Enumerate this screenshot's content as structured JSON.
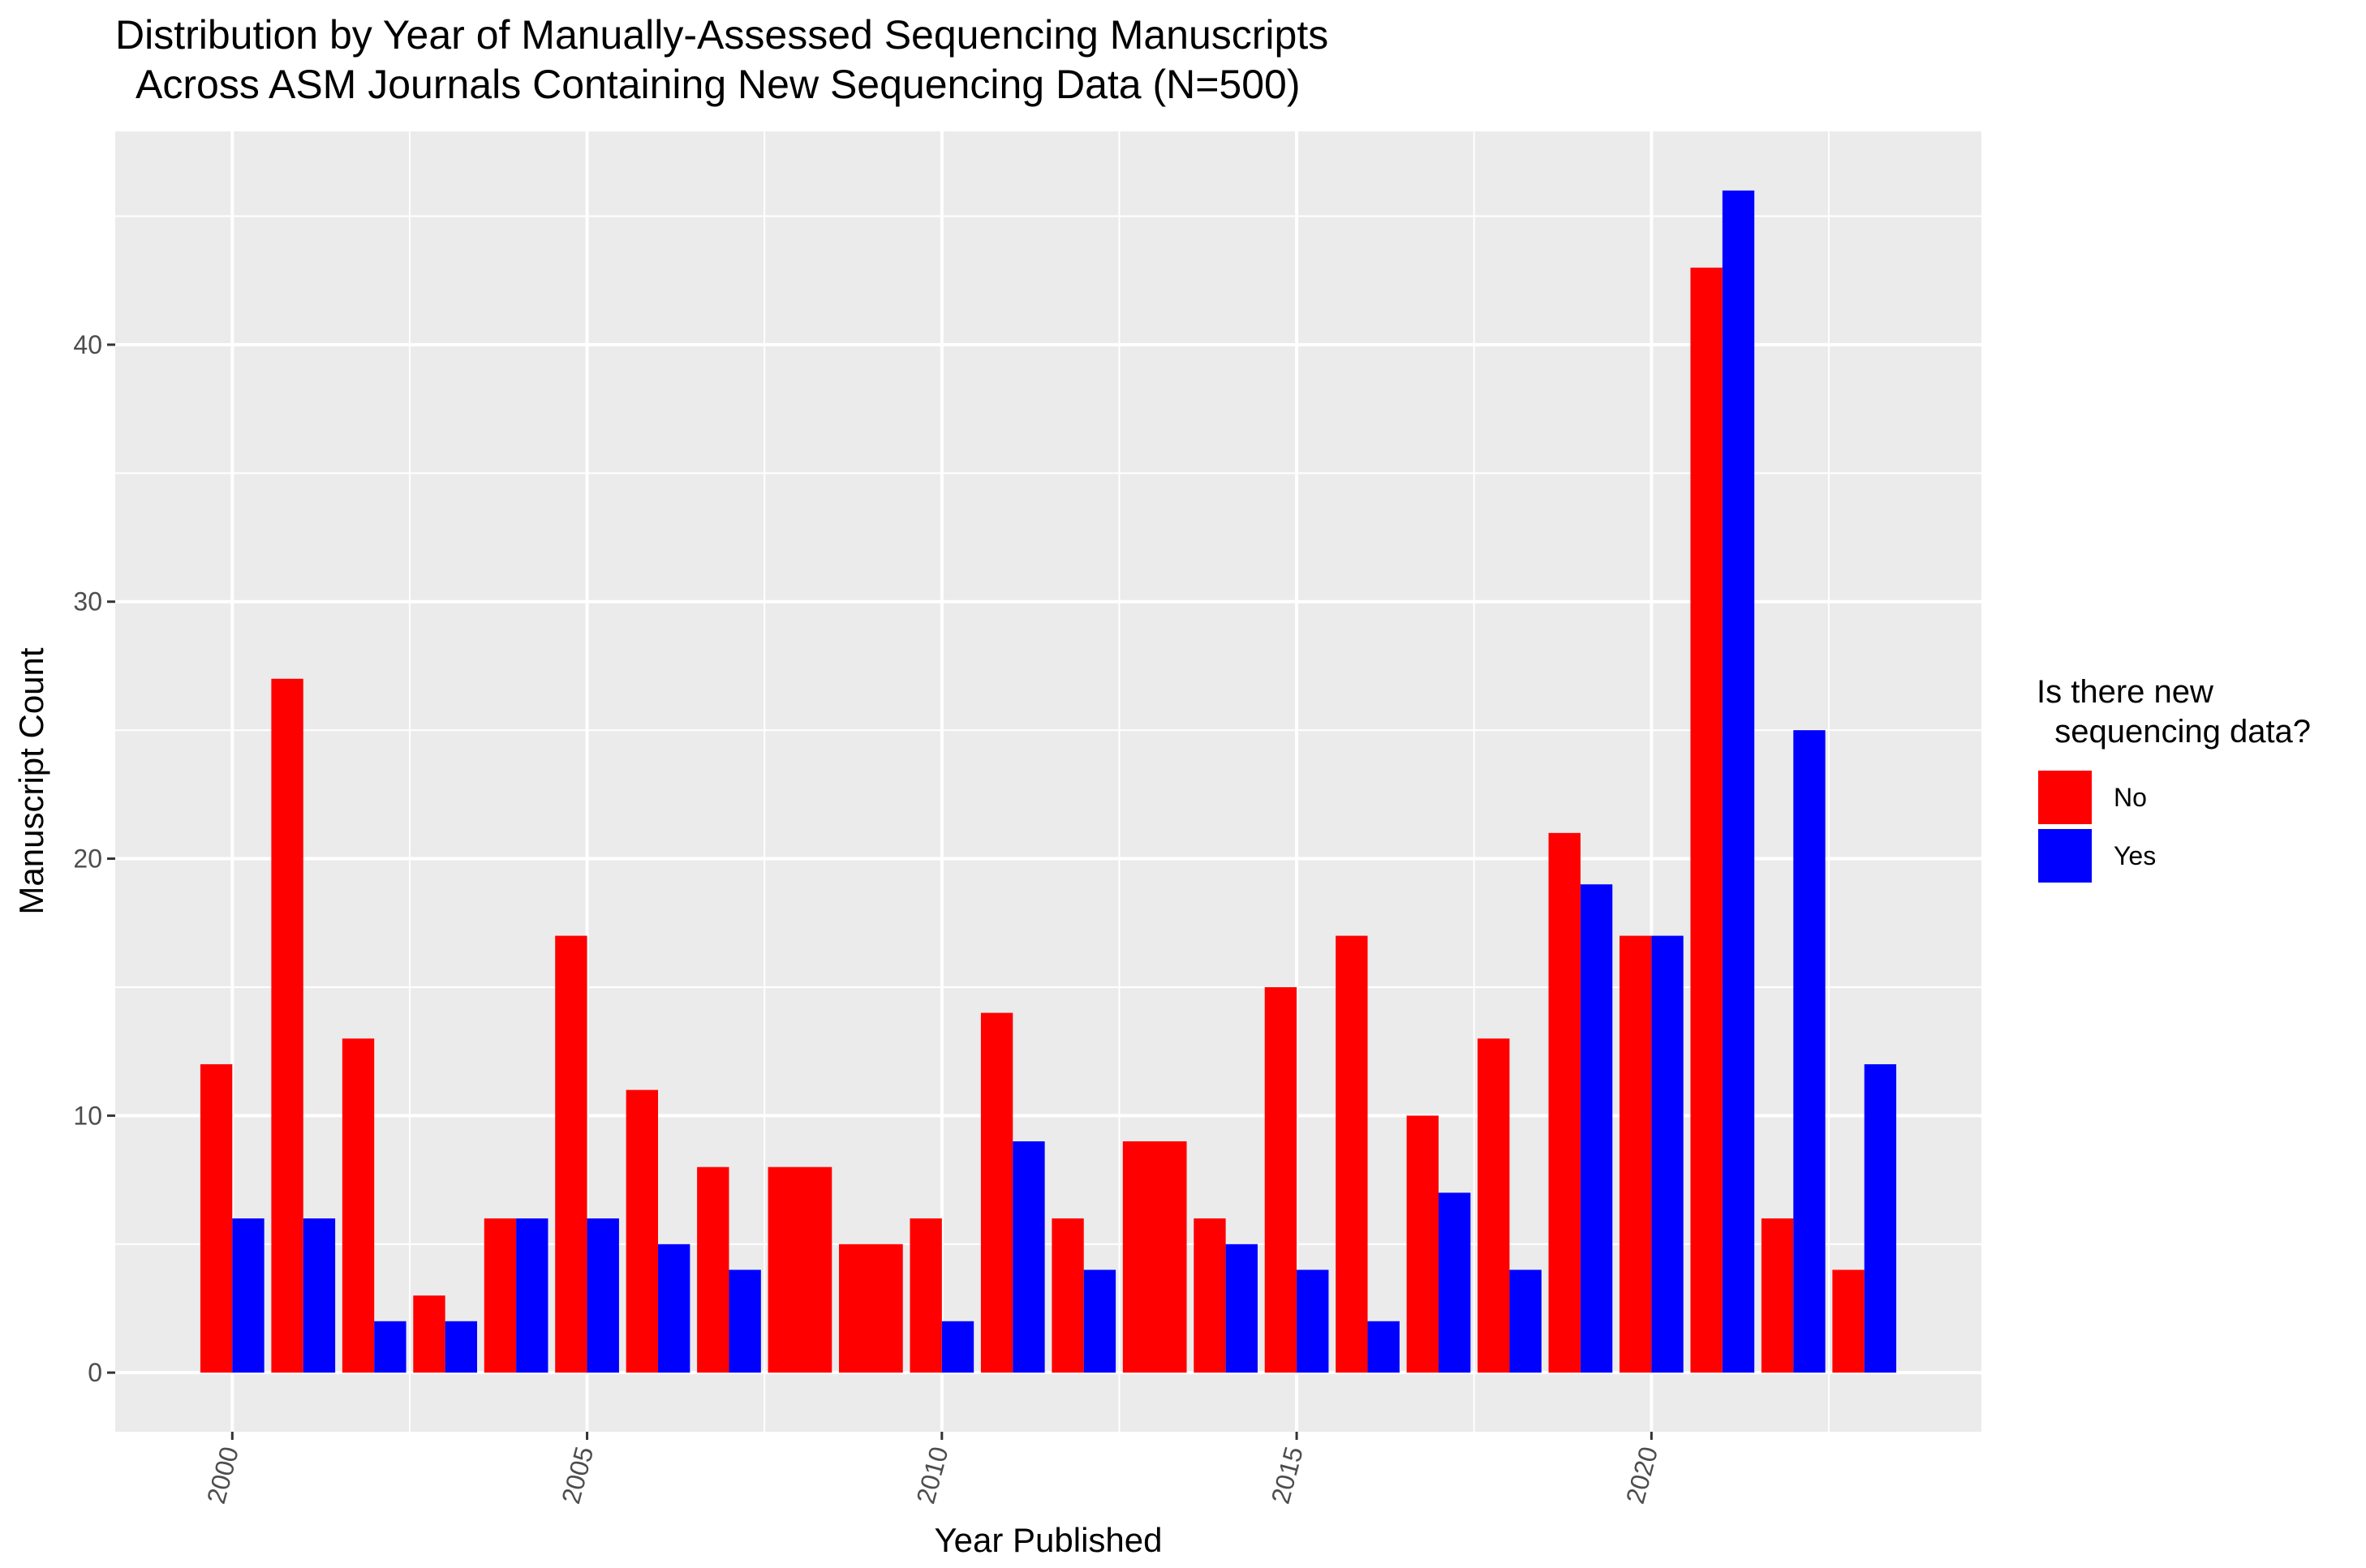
{
  "chart_data": {
    "type": "bar",
    "title": "Distribution by Year of Manually-Assessed Sequencing Manuscripts",
    "subtitle": "  Across ASM Journals Containing New Sequencing Data (N=500)",
    "xlabel": "Year Published",
    "ylabel": "Manuscript Count",
    "x_ticks": [
      "2000",
      "2005",
      "2010",
      "2015",
      "2020"
    ],
    "y_ticks": [
      "0",
      "10",
      "20",
      "30",
      "40"
    ],
    "ylim": [
      -2.3,
      48.3
    ],
    "xlim": [
      1998.35,
      2024.65
    ],
    "grid": true,
    "legend": {
      "title_line1": "Is there new",
      "title_line2": "  sequencing data?",
      "placement": "right",
      "entries": [
        {
          "label": "No",
          "color": "#ff0000"
        },
        {
          "label": "Yes",
          "color": "#0000ff"
        }
      ]
    },
    "colors": {
      "No": "#ff0000",
      "Yes": "#0000ff",
      "panel": "#ebebeb",
      "grid": "#ffffff"
    },
    "categories": [
      2000,
      2001,
      2002,
      2003,
      2004,
      2005,
      2006,
      2007,
      2008,
      2009,
      2010,
      2011,
      2012,
      2013,
      2014,
      2015,
      2016,
      2017,
      2018,
      2019,
      2020,
      2021,
      2022,
      2023
    ],
    "series": [
      {
        "name": "No",
        "values": [
          12,
          27,
          13,
          3,
          6,
          17,
          11,
          8,
          8,
          5,
          6,
          14,
          6,
          9,
          6,
          15,
          17,
          10,
          13,
          21,
          17,
          43,
          6,
          4
        ]
      },
      {
        "name": "Yes",
        "values": [
          6,
          6,
          2,
          2,
          6,
          6,
          5,
          4,
          null,
          null,
          2,
          9,
          4,
          null,
          5,
          4,
          2,
          7,
          4,
          19,
          17,
          46,
          25,
          12
        ]
      }
    ]
  }
}
